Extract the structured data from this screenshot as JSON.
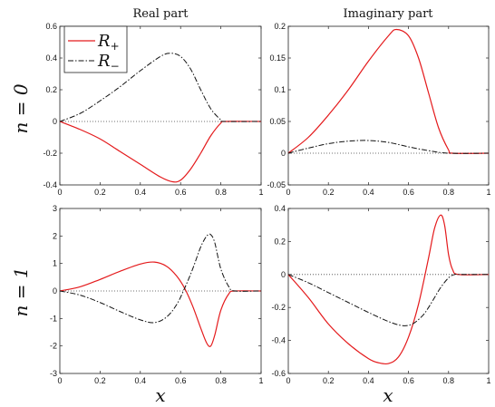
{
  "figure": {
    "col_titles": [
      "Real part",
      "Imaginary part"
    ],
    "row_labels": [
      "n = 0",
      "n = 1"
    ],
    "xlabel": "x"
  },
  "legend": {
    "placement": "top-left of first panel",
    "entries": [
      {
        "label": "R+",
        "main": "R",
        "sub": "+",
        "color": "#e41a1c",
        "style": "solid"
      },
      {
        "label": "R−",
        "main": "R",
        "sub": "−",
        "color": "#111111",
        "style": "dashdot"
      }
    ]
  },
  "chart_data": [
    {
      "type": "line",
      "title": "Real part",
      "row_label": "n = 0",
      "xlabel": "",
      "ylabel": "n = 0",
      "xlim": [
        0,
        1
      ],
      "ylim": [
        -0.4,
        0.6
      ],
      "xticks": [
        0,
        0.2,
        0.4,
        0.6,
        0.8,
        1
      ],
      "xtick_labels": [
        "0",
        "0.2",
        "0.4",
        "0.6",
        "0.8",
        "1"
      ],
      "yticks": [
        -0.4,
        -0.2,
        0,
        0.2,
        0.4,
        0.6
      ],
      "ytick_labels": [
        "-0.4",
        "-0.2",
        "0",
        "0.2",
        "0.4",
        "0.6"
      ],
      "zero_line": true,
      "series": [
        {
          "name": "R+",
          "color": "#e41a1c",
          "style": "solid",
          "x": [
            0,
            0.1,
            0.2,
            0.3,
            0.4,
            0.5,
            0.56,
            0.6,
            0.65,
            0.7,
            0.75,
            0.8,
            0.82,
            1
          ],
          "y": [
            0,
            -0.05,
            -0.11,
            -0.19,
            -0.27,
            -0.35,
            -0.38,
            -0.37,
            -0.3,
            -0.2,
            -0.09,
            -0.01,
            0,
            0
          ]
        },
        {
          "name": "R−",
          "color": "#111111",
          "style": "dashdot",
          "x": [
            0,
            0.1,
            0.2,
            0.3,
            0.4,
            0.5,
            0.55,
            0.6,
            0.65,
            0.7,
            0.75,
            0.8,
            0.82,
            1
          ],
          "y": [
            0,
            0.05,
            0.13,
            0.22,
            0.32,
            0.41,
            0.43,
            0.41,
            0.33,
            0.2,
            0.08,
            0.01,
            0,
            0
          ]
        }
      ]
    },
    {
      "type": "line",
      "title": "Imaginary part",
      "row_label": "n = 0",
      "xlabel": "",
      "ylabel": "",
      "xlim": [
        0,
        1
      ],
      "ylim": [
        -0.05,
        0.2
      ],
      "xticks": [
        0,
        0.2,
        0.4,
        0.6,
        0.8,
        1
      ],
      "xtick_labels": [
        "0",
        "0.2",
        "0.4",
        "0.6",
        "0.8",
        "1"
      ],
      "yticks": [
        -0.05,
        0,
        0.05,
        0.1,
        0.15,
        0.2
      ],
      "ytick_labels": [
        "-0.05",
        "0",
        "0.05",
        "0.1",
        "0.15",
        "0.2"
      ],
      "zero_line": true,
      "series": [
        {
          "name": "R+",
          "color": "#e41a1c",
          "style": "solid",
          "x": [
            0,
            0.1,
            0.2,
            0.3,
            0.4,
            0.5,
            0.54,
            0.6,
            0.65,
            0.7,
            0.75,
            0.8,
            0.82,
            1
          ],
          "y": [
            0,
            0.025,
            0.06,
            0.1,
            0.145,
            0.185,
            0.195,
            0.185,
            0.15,
            0.095,
            0.04,
            0.005,
            0,
            0
          ]
        },
        {
          "name": "R−",
          "color": "#111111",
          "style": "dashdot",
          "x": [
            0,
            0.1,
            0.2,
            0.3,
            0.4,
            0.5,
            0.6,
            0.7,
            0.8,
            1
          ],
          "y": [
            0,
            0.008,
            0.015,
            0.019,
            0.02,
            0.017,
            0.01,
            0.004,
            0,
            0
          ]
        }
      ]
    },
    {
      "type": "line",
      "title": "",
      "row_label": "n = 1",
      "xlabel": "x",
      "ylabel": "n = 1",
      "xlim": [
        0,
        1
      ],
      "ylim": [
        -3,
        3
      ],
      "xticks": [
        0,
        0.2,
        0.4,
        0.6,
        0.8,
        1
      ],
      "xtick_labels": [
        "0",
        "0.2",
        "0.4",
        "0.6",
        "0.8",
        "1"
      ],
      "yticks": [
        -3,
        -2,
        -1,
        0,
        1,
        2,
        3
      ],
      "ytick_labels": [
        "-3",
        "-2",
        "-1",
        "0",
        "1",
        "2",
        "3"
      ],
      "zero_line": true,
      "series": [
        {
          "name": "R+",
          "color": "#e41a1c",
          "style": "solid",
          "x": [
            0,
            0.1,
            0.2,
            0.3,
            0.4,
            0.47,
            0.53,
            0.58,
            0.62,
            0.66,
            0.7,
            0.73,
            0.75,
            0.77,
            0.8,
            0.84,
            0.87,
            1
          ],
          "y": [
            0,
            0.15,
            0.42,
            0.72,
            0.98,
            1.05,
            0.9,
            0.55,
            0.1,
            -0.55,
            -1.35,
            -1.9,
            -2.0,
            -1.6,
            -0.7,
            -0.1,
            0,
            0
          ]
        },
        {
          "name": "R−",
          "color": "#111111",
          "style": "dashdot",
          "x": [
            0,
            0.1,
            0.2,
            0.3,
            0.4,
            0.47,
            0.53,
            0.58,
            0.62,
            0.66,
            0.7,
            0.73,
            0.75,
            0.77,
            0.8,
            0.84,
            0.87,
            1
          ],
          "y": [
            0,
            -0.15,
            -0.42,
            -0.75,
            -1.05,
            -1.15,
            -0.95,
            -0.5,
            0.1,
            0.8,
            1.6,
            2.0,
            2.05,
            1.75,
            0.8,
            0.15,
            0,
            0
          ]
        }
      ]
    },
    {
      "type": "line",
      "title": "",
      "row_label": "n = 1",
      "xlabel": "x",
      "ylabel": "",
      "xlim": [
        0,
        1
      ],
      "ylim": [
        -0.6,
        0.4
      ],
      "xticks": [
        0,
        0.2,
        0.4,
        0.6,
        0.8,
        1
      ],
      "xtick_labels": [
        "0",
        "0.2",
        "0.4",
        "0.6",
        "0.8",
        "1"
      ],
      "yticks": [
        -0.6,
        -0.4,
        -0.2,
        0,
        0.2,
        0.4
      ],
      "ytick_labels": [
        "-0.6",
        "-0.4",
        "-0.2",
        "0",
        "0.2",
        "0.4"
      ],
      "zero_line": true,
      "series": [
        {
          "name": "R+",
          "color": "#e41a1c",
          "style": "solid",
          "x": [
            0,
            0.1,
            0.2,
            0.3,
            0.4,
            0.45,
            0.5,
            0.55,
            0.6,
            0.65,
            0.7,
            0.73,
            0.76,
            0.78,
            0.8,
            0.82,
            0.85,
            1
          ],
          "y": [
            0,
            -0.14,
            -0.3,
            -0.42,
            -0.51,
            -0.535,
            -0.54,
            -0.5,
            -0.38,
            -0.18,
            0.1,
            0.28,
            0.36,
            0.3,
            0.12,
            0.03,
            0,
            0
          ]
        },
        {
          "name": "R−",
          "color": "#111111",
          "style": "dashdot",
          "x": [
            0,
            0.1,
            0.2,
            0.3,
            0.4,
            0.5,
            0.57,
            0.62,
            0.67,
            0.7,
            0.73,
            0.76,
            0.8,
            0.83,
            0.86,
            1
          ],
          "y": [
            0,
            -0.05,
            -0.11,
            -0.17,
            -0.23,
            -0.285,
            -0.31,
            -0.3,
            -0.25,
            -0.2,
            -0.14,
            -0.08,
            -0.02,
            0,
            0,
            0
          ]
        }
      ]
    }
  ]
}
